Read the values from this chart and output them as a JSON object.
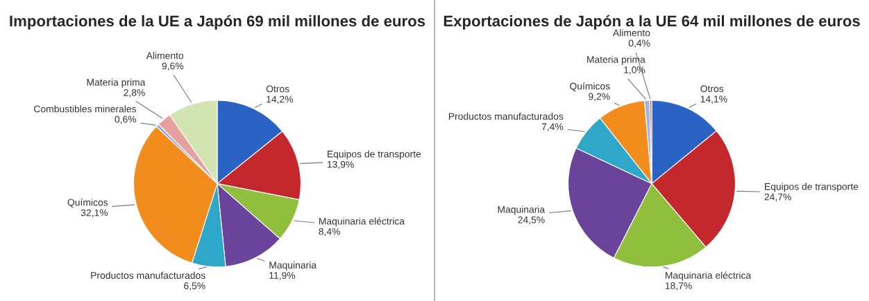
{
  "chart_data": [
    {
      "type": "pie",
      "title": "Importaciones de la UE a Japón 69 mil millones de euros",
      "categories": [
        "Otros",
        "Equipos de transporte",
        "Maquinaria eléctrica",
        "Maquinaria",
        "Productos manufacturados",
        "Químicos",
        "Combustibles minerales",
        "Materia prima",
        "Alimento"
      ],
      "values": [
        14.2,
        13.9,
        8.4,
        11.9,
        6.5,
        32.1,
        0.6,
        2.8,
        9.6
      ],
      "colors": [
        "#2a63c4",
        "#c4282d",
        "#8fbf3c",
        "#6a449a",
        "#2fa7c8",
        "#f28c1c",
        "#8faadc",
        "#e6a0a0",
        "#d3e4b3"
      ],
      "value_labels": [
        "14,2%",
        "13,9%",
        "8,4%",
        "11,9%",
        "6,5%",
        "32,1%",
        "0,6%",
        "2,8%",
        "9,6%"
      ]
    },
    {
      "type": "pie",
      "title": "Exportaciones de Japón a la UE 64 mil millones de euros",
      "categories": [
        "Otros",
        "Equipos de transporte",
        "Maquinaria eléctrica",
        "Maquinaria",
        "Productos manufacturados",
        "Químicos",
        "Materia prima",
        "Alimento"
      ],
      "values": [
        14.1,
        24.7,
        18.7,
        24.5,
        7.4,
        9.2,
        1.0,
        0.4
      ],
      "colors": [
        "#2a63c4",
        "#c4282d",
        "#8fbf3c",
        "#6a449a",
        "#2fa7c8",
        "#f28c1c",
        "#9db7e0",
        "#e06c6c"
      ],
      "value_labels": [
        "14,1%",
        "24,7%",
        "18,7%",
        "24,5%",
        "7,4%",
        "9,2%",
        "1,0%",
        "0,4%"
      ]
    }
  ]
}
